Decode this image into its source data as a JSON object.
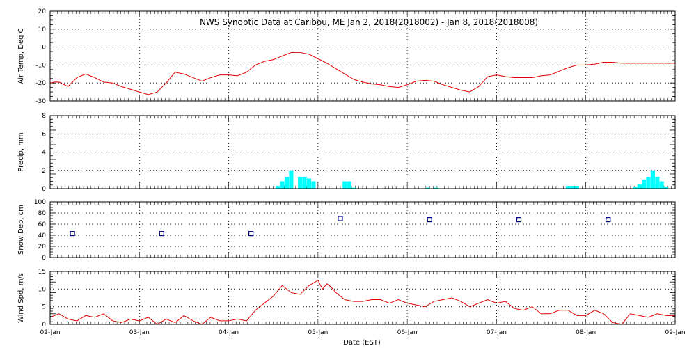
{
  "colors": {
    "air_temp": "#e00000",
    "precip": "#00ffff",
    "snow": "#00008b",
    "wind": "#e00000",
    "grid": "#000000"
  },
  "chart_data": [
    {
      "type": "line",
      "name": "air-temp",
      "title": "NWS Synoptic Data at Caribou, ME   Jan  2, 2018(2018002) - Jan  8, 2018(2018008)",
      "ylabel": "Air Temp, Deg C",
      "ylim": [
        -30,
        20
      ],
      "yticks": [
        20,
        10,
        0,
        -10,
        -20,
        -30
      ],
      "x": [
        0,
        0.05,
        0.1,
        0.2,
        0.3,
        0.4,
        0.5,
        0.6,
        0.7,
        0.8,
        0.9,
        1.0,
        1.1,
        1.2,
        1.3,
        1.4,
        1.5,
        1.6,
        1.7,
        1.8,
        1.9,
        2.0,
        2.1,
        2.2,
        2.3,
        2.4,
        2.5,
        2.6,
        2.7,
        2.8,
        2.9,
        3.0,
        3.1,
        3.2,
        3.3,
        3.4,
        3.5,
        3.6,
        3.7,
        3.8,
        3.9,
        4.0,
        4.1,
        4.2,
        4.3,
        4.4,
        4.5,
        4.6,
        4.7,
        4.8,
        4.9,
        5.0,
        5.1,
        5.2,
        5.3,
        5.4,
        5.5,
        5.6,
        5.7,
        5.8,
        5.9,
        6.0,
        6.1,
        6.2,
        6.3,
        6.4,
        6.5,
        6.6,
        6.7,
        6.8,
        6.9,
        7.0
      ],
      "values": [
        -20,
        -19.5,
        -19.5,
        -22,
        -17,
        -15,
        -17,
        -19.5,
        -20,
        -22,
        -23.5,
        -25,
        -26.5,
        -25,
        -20,
        -14,
        -15,
        -17,
        -19,
        -17,
        -15.5,
        -15.5,
        -16,
        -14,
        -10,
        -8,
        -7,
        -5,
        -3,
        -3,
        -4,
        -6.5,
        -9,
        -12,
        -15,
        -18,
        -19.5,
        -20.5,
        -21,
        -22,
        -22.5,
        -21,
        -19,
        -18.5,
        -19,
        -21,
        -22.5,
        -24,
        -25,
        -22,
        -16.5,
        -15.5,
        -16.5,
        -17,
        -17,
        -17,
        -16,
        -15.5,
        -13.5,
        -11.5,
        -10,
        -10,
        -9.5,
        -8.5,
        -8.5,
        -9,
        -9,
        -9,
        -9,
        -9,
        -9,
        -9
      ]
    },
    {
      "type": "bar",
      "name": "precip",
      "ylabel": "Precip, mm",
      "ylim": [
        0,
        8
      ],
      "yticks": [
        8,
        6,
        4,
        2,
        0
      ],
      "x": [
        2.55,
        2.6,
        2.65,
        2.7,
        2.8,
        2.85,
        2.9,
        2.95,
        3.3,
        3.35,
        3.4,
        4.23,
        4.32,
        5.8,
        5.85,
        5.9,
        6.55,
        6.6,
        6.65,
        6.7,
        6.75,
        6.8,
        6.85,
        6.9
      ],
      "values": [
        0.3,
        0.8,
        1.3,
        2.0,
        1.3,
        1.3,
        1.1,
        0.8,
        0.8,
        0.8,
        0.1,
        0.1,
        0.1,
        0.3,
        0.3,
        0.3,
        0.2,
        0.5,
        1.0,
        1.3,
        2.0,
        1.3,
        0.8,
        0.2
      ]
    },
    {
      "type": "scatter",
      "name": "snow-depth",
      "ylabel": "Snow Dep, cm",
      "ylim": [
        0,
        100
      ],
      "yticks": [
        100,
        80,
        60,
        40,
        20,
        0
      ],
      "x": [
        0.25,
        1.25,
        2.25,
        3.25,
        4.25,
        5.25,
        6.25
      ],
      "values": [
        43,
        43,
        43,
        70,
        68,
        68,
        68
      ]
    },
    {
      "type": "line",
      "name": "wind-speed",
      "ylabel": "Wind Spd, m/s",
      "xlabel": "Date (EST)",
      "ylim": [
        0,
        15
      ],
      "yticks": [
        15,
        10,
        5,
        0
      ],
      "x": [
        0,
        0.1,
        0.2,
        0.3,
        0.4,
        0.5,
        0.6,
        0.7,
        0.8,
        0.9,
        1.0,
        1.1,
        1.2,
        1.3,
        1.4,
        1.5,
        1.6,
        1.7,
        1.8,
        1.9,
        2.0,
        2.1,
        2.2,
        2.3,
        2.4,
        2.5,
        2.6,
        2.7,
        2.8,
        2.9,
        3.0,
        3.05,
        3.1,
        3.15,
        3.2,
        3.3,
        3.4,
        3.5,
        3.6,
        3.7,
        3.8,
        3.9,
        4.0,
        4.1,
        4.2,
        4.3,
        4.4,
        4.5,
        4.6,
        4.7,
        4.8,
        4.9,
        5.0,
        5.1,
        5.2,
        5.3,
        5.4,
        5.5,
        5.6,
        5.7,
        5.8,
        5.9,
        6.0,
        6.1,
        6.2,
        6.3,
        6.4,
        6.5,
        6.6,
        6.7,
        6.8,
        6.9,
        7.0
      ],
      "values": [
        2,
        3,
        1.5,
        1,
        2.5,
        2,
        3,
        1,
        0.5,
        1.5,
        1,
        2,
        0,
        1.5,
        0.5,
        2.5,
        1,
        0,
        2,
        1,
        1,
        1.5,
        1,
        4,
        6,
        8,
        11,
        9,
        8.5,
        11,
        12.5,
        10,
        11.5,
        10.5,
        9,
        7,
        6.5,
        6.5,
        7,
        7,
        6,
        7,
        6,
        5.5,
        5,
        6.5,
        7,
        7.5,
        6.5,
        5,
        6,
        7,
        6,
        6.5,
        4.5,
        4,
        5,
        3,
        3,
        4,
        4,
        2.5,
        2.5,
        4,
        3,
        0.5,
        0,
        3,
        2.5,
        2,
        3,
        2.5,
        2.5
      ]
    }
  ],
  "x_axis": {
    "tick_labels": [
      "02-Jan",
      "03-Jan",
      "04-Jan",
      "05-Jan",
      "06-Jan",
      "07-Jan",
      "08-Jan",
      "09-Jan"
    ],
    "xlim": [
      0,
      7
    ],
    "xlabel": "Date (EST)"
  }
}
